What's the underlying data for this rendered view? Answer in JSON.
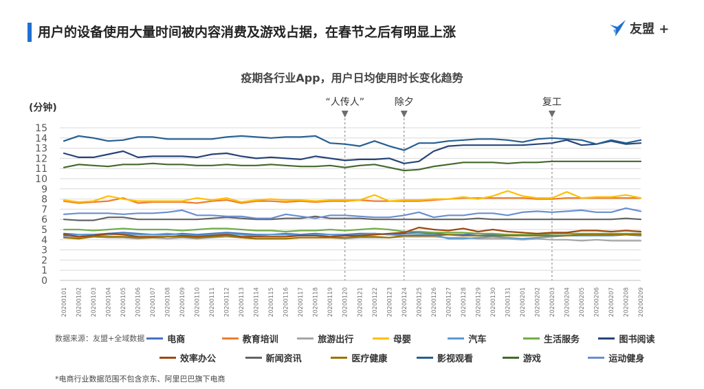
{
  "header": {
    "title": "用户的设备使用大量时间被内容消费及游戏占据，在春节之后有明显上涨",
    "brand": "友盟 +"
  },
  "legend": {
    "source": "数据来源：友盟+全域数据"
  },
  "footnote": "*电商行业数据范围不包含京东、阿里巴巴旗下电商",
  "colors": {
    "accent": "#1f6fd0",
    "marker": "#6d6d6d",
    "grid": "#d9d9d9"
  },
  "chart_data": {
    "type": "line",
    "title": "疫期各行业App，用户日均使用时长变化趋势",
    "ylabel": "(分钟)",
    "ylim": [
      0,
      15
    ],
    "yticks": [
      0,
      1,
      2,
      3,
      4,
      5,
      6,
      7,
      8,
      9,
      10,
      11,
      12,
      13,
      14,
      15
    ],
    "grid": true,
    "categories": [
      "20200101",
      "20200102",
      "20200103",
      "20200104",
      "20200105",
      "20200106",
      "20200107",
      "20200108",
      "20200109",
      "20200110",
      "20200111",
      "20200112",
      "20200113",
      "20200114",
      "20200115",
      "20200116",
      "20200117",
      "20200118",
      "20200119",
      "20200120",
      "20200121",
      "20200122",
      "20200123",
      "20200124",
      "20200125",
      "20200126",
      "20200127",
      "20200128",
      "20200129",
      "20200130",
      "20200131",
      "20200201",
      "20200202",
      "20200203",
      "20200204",
      "20200205",
      "20200206",
      "20200207",
      "20200208",
      "20200209"
    ],
    "annotations": [
      {
        "label": "“人传人”",
        "x": "20200120"
      },
      {
        "label": "除夕",
        "x": "20200124"
      },
      {
        "label": "复工",
        "x": "20200203"
      }
    ],
    "series": [
      {
        "name": "电商",
        "color": "#4472c4",
        "values": [
          4.6,
          4.5,
          4.5,
          4.6,
          4.7,
          4.6,
          4.5,
          4.5,
          4.6,
          4.5,
          4.6,
          4.7,
          4.6,
          4.5,
          4.5,
          4.6,
          4.5,
          4.6,
          4.5,
          4.5,
          4.6,
          4.6,
          4.5,
          4.6,
          4.7,
          4.6,
          4.5,
          4.5,
          4.6,
          4.5,
          4.5,
          4.4,
          4.5,
          4.4,
          4.4,
          4.4,
          4.5,
          4.4,
          4.5,
          4.4
        ]
      },
      {
        "name": "教育培训",
        "color": "#ed7d31",
        "values": [
          7.8,
          7.6,
          7.7,
          7.8,
          8.1,
          7.6,
          7.7,
          7.7,
          7.7,
          7.6,
          7.8,
          7.9,
          7.6,
          7.8,
          7.8,
          7.7,
          7.8,
          7.7,
          7.8,
          7.8,
          7.9,
          7.8,
          7.8,
          7.8,
          7.8,
          7.9,
          8.0,
          8.1,
          8.1,
          8.1,
          8.1,
          8.1,
          8.0,
          8.0,
          8.1,
          8.1,
          8.1,
          8.1,
          8.1,
          8.1
        ]
      },
      {
        "name": "旅游出行",
        "color": "#a5a5a5",
        "values": [
          4.3,
          4.2,
          4.3,
          4.2,
          4.2,
          4.1,
          4.2,
          4.1,
          4.2,
          4.1,
          4.2,
          4.3,
          4.2,
          4.1,
          4.1,
          4.1,
          4.2,
          4.2,
          4.2,
          4.1,
          4.2,
          4.2,
          4.2,
          4.3,
          4.3,
          4.3,
          4.2,
          4.2,
          4.1,
          4.1,
          4.1,
          4.0,
          4.1,
          4.0,
          4.0,
          3.9,
          4.0,
          3.9,
          3.9,
          3.9
        ]
      },
      {
        "name": "母婴",
        "color": "#ffc000",
        "values": [
          7.9,
          7.7,
          7.8,
          8.3,
          8.0,
          7.8,
          7.8,
          7.8,
          7.8,
          8.1,
          7.9,
          8.1,
          7.7,
          7.9,
          8.0,
          7.9,
          7.9,
          7.8,
          7.9,
          7.9,
          7.9,
          8.4,
          7.8,
          7.9,
          7.9,
          8.0,
          8.0,
          8.2,
          8.0,
          8.3,
          8.8,
          8.3,
          8.1,
          8.1,
          8.7,
          8.1,
          8.2,
          8.2,
          8.4,
          8.1
        ]
      },
      {
        "name": "汽车",
        "color": "#5b9bd5",
        "values": [
          4.4,
          4.5,
          4.4,
          4.5,
          4.6,
          4.5,
          4.5,
          4.6,
          4.5,
          4.4,
          4.5,
          4.6,
          4.5,
          4.4,
          4.5,
          4.5,
          4.4,
          4.5,
          4.5,
          4.4,
          4.5,
          4.6,
          4.5,
          4.4,
          4.5,
          4.5,
          4.1,
          4.1,
          4.2,
          4.3,
          4.2,
          4.1,
          4.2,
          4.3,
          4.4,
          4.4,
          4.4,
          4.4,
          4.6,
          4.4
        ]
      },
      {
        "name": "生活服务",
        "color": "#70ad47",
        "values": [
          5.0,
          5.0,
          4.9,
          5.0,
          5.1,
          5.0,
          5.0,
          5.0,
          4.9,
          5.0,
          5.1,
          5.1,
          5.0,
          4.9,
          4.9,
          4.8,
          4.9,
          4.9,
          5.0,
          4.9,
          5.0,
          5.1,
          5.0,
          4.8,
          4.8,
          4.7,
          4.7,
          4.7,
          4.6,
          4.6,
          4.5,
          4.5,
          4.5,
          4.6,
          4.6,
          4.6,
          4.6,
          4.6,
          4.6,
          4.6
        ]
      },
      {
        "name": "图书阅读",
        "color": "#264478",
        "values": [
          12.5,
          12.1,
          12.1,
          12.4,
          12.7,
          12.1,
          12.2,
          12.2,
          12.2,
          12.1,
          12.4,
          12.5,
          12.2,
          12.0,
          12.1,
          12.0,
          11.9,
          12.2,
          12.0,
          11.8,
          11.9,
          11.9,
          12.0,
          11.5,
          11.7,
          12.7,
          13.2,
          13.3,
          13.3,
          13.3,
          13.3,
          13.3,
          13.4,
          13.5,
          13.8,
          13.3,
          13.4,
          13.7,
          13.4,
          13.5
        ]
      },
      {
        "name": "效率办公",
        "color": "#9e480e",
        "values": [
          4.5,
          4.3,
          4.4,
          4.6,
          4.5,
          4.3,
          4.3,
          4.3,
          4.4,
          4.3,
          4.4,
          4.5,
          4.3,
          4.3,
          4.3,
          4.3,
          4.4,
          4.4,
          4.3,
          4.4,
          4.4,
          4.5,
          4.6,
          4.7,
          5.2,
          5.0,
          4.9,
          5.1,
          4.8,
          5.0,
          4.8,
          4.7,
          4.6,
          4.7,
          4.7,
          4.9,
          4.9,
          4.8,
          4.9,
          4.8
        ]
      },
      {
        "name": "新闻资讯",
        "color": "#636363",
        "values": [
          6.0,
          5.9,
          5.9,
          6.2,
          6.2,
          6.0,
          6.0,
          6.0,
          6.0,
          6.0,
          6.1,
          6.2,
          6.1,
          6.0,
          6.0,
          6.1,
          6.1,
          6.3,
          6.1,
          6.1,
          6.1,
          6.0,
          6.0,
          6.0,
          6.0,
          6.0,
          6.0,
          6.0,
          6.1,
          6.0,
          6.0,
          6.0,
          6.0,
          6.0,
          6.0,
          6.0,
          6.0,
          6.0,
          6.1,
          6.0
        ]
      },
      {
        "name": "医疗健康",
        "color": "#997300",
        "values": [
          4.2,
          4.1,
          4.3,
          4.3,
          4.3,
          4.2,
          4.2,
          4.3,
          4.3,
          4.2,
          4.3,
          4.4,
          4.2,
          4.1,
          4.1,
          4.1,
          4.2,
          4.2,
          4.2,
          4.2,
          4.3,
          4.3,
          4.2,
          4.4,
          4.4,
          4.4,
          4.5,
          4.4,
          4.4,
          4.4,
          4.4,
          4.4,
          4.4,
          4.4,
          4.4,
          4.5,
          4.5,
          4.5,
          4.5,
          4.5
        ]
      },
      {
        "name": "影视观看",
        "color": "#255e91",
        "values": [
          13.7,
          14.2,
          14.0,
          13.7,
          13.8,
          14.1,
          14.1,
          13.9,
          13.9,
          13.9,
          13.9,
          14.1,
          14.2,
          14.1,
          14.0,
          14.1,
          14.1,
          14.2,
          13.5,
          13.4,
          13.2,
          13.7,
          13.2,
          12.8,
          13.5,
          13.5,
          13.7,
          13.8,
          13.9,
          13.9,
          13.8,
          13.6,
          13.9,
          14.0,
          13.9,
          13.8,
          13.4,
          13.8,
          13.5,
          13.8
        ]
      },
      {
        "name": "游戏",
        "color": "#43682b",
        "values": [
          11.1,
          11.4,
          11.3,
          11.2,
          11.4,
          11.4,
          11.5,
          11.4,
          11.4,
          11.3,
          11.3,
          11.4,
          11.3,
          11.3,
          11.4,
          11.3,
          11.2,
          11.2,
          11.3,
          11.1,
          11.3,
          11.4,
          11.1,
          10.8,
          10.9,
          11.2,
          11.4,
          11.6,
          11.6,
          11.6,
          11.5,
          11.6,
          11.6,
          11.7,
          11.7,
          11.7,
          11.7,
          11.7,
          11.7,
          11.7
        ]
      },
      {
        "name": "运动健身",
        "color": "#698ed0",
        "values": [
          6.5,
          6.6,
          6.6,
          6.6,
          6.5,
          6.6,
          6.6,
          6.7,
          6.9,
          6.4,
          6.4,
          6.3,
          6.3,
          6.1,
          6.1,
          6.5,
          6.3,
          6.1,
          6.4,
          6.4,
          6.3,
          6.2,
          6.2,
          6.4,
          6.7,
          6.2,
          6.4,
          6.4,
          6.6,
          6.6,
          6.4,
          6.7,
          6.8,
          6.7,
          6.8,
          6.9,
          6.7,
          6.7,
          7.1,
          6.8
        ]
      }
    ]
  }
}
